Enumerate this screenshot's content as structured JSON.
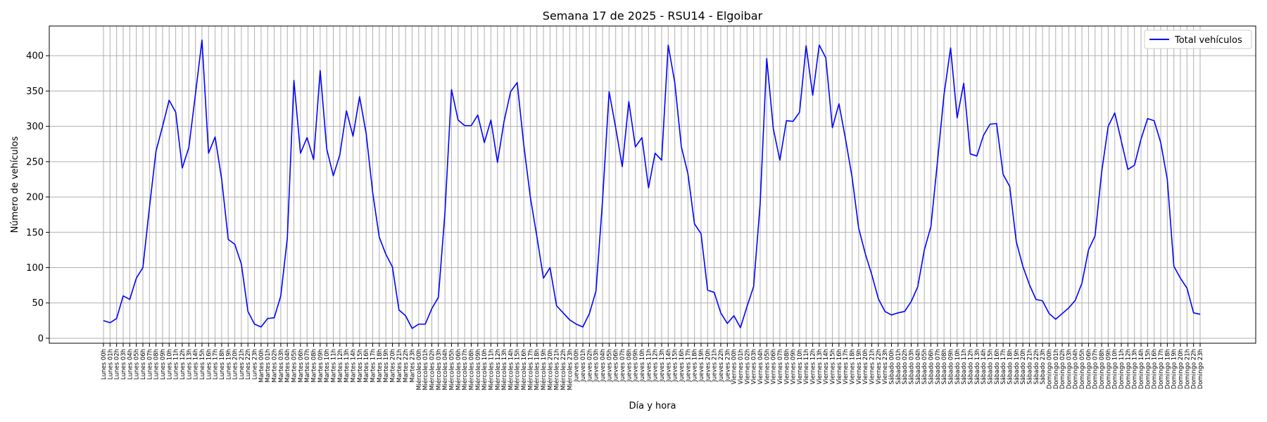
{
  "chart_data": {
    "type": "line",
    "title": "Semana 17 de 2025 - RSU14 - Elgoibar",
    "xlabel": "Día y hora",
    "ylabel": "Número de vehículos",
    "ylim": [
      -7,
      442
    ],
    "yticks": [
      0,
      50,
      100,
      150,
      200,
      250,
      300,
      350,
      400
    ],
    "grid": true,
    "legend": "top-right",
    "series": [
      {
        "name": "Total vehículos",
        "color": "#0000ff",
        "values": [
          25,
          22,
          28,
          60,
          55,
          85,
          100,
          185,
          265,
          300,
          337,
          320,
          241,
          270,
          345,
          422,
          262,
          285,
          225,
          140,
          133,
          105,
          38,
          20,
          16,
          28,
          29,
          60,
          142,
          365,
          262,
          284,
          253,
          379,
          268,
          230,
          260,
          322,
          286,
          342,
          290,
          206,
          143,
          119,
          101,
          40,
          32,
          14,
          20,
          20,
          42,
          58,
          178,
          352,
          309,
          301,
          301,
          316,
          277,
          309,
          249,
          307,
          349,
          362,
          274,
          200,
          144,
          85,
          100,
          46,
          36,
          26,
          20,
          16,
          35,
          67,
          195,
          349,
          298,
          243,
          335,
          271,
          284,
          213,
          262,
          252,
          415,
          362,
          271,
          233,
          162,
          148,
          68,
          65,
          36,
          21,
          32,
          15,
          45,
          73,
          190,
          396,
          297,
          252,
          308,
          307,
          320,
          414,
          344,
          415,
          397,
          298,
          332,
          282,
          228,
          156,
          120,
          90,
          56,
          38,
          33,
          36,
          38,
          52,
          73,
          125,
          158,
          250,
          345,
          411,
          312,
          361,
          261,
          258,
          287,
          303,
          304,
          232,
          215,
          137,
          102,
          76,
          55,
          53,
          35,
          27,
          35,
          43,
          54,
          78,
          125,
          145,
          235,
          300,
          319,
          279,
          239,
          245,
          282,
          311,
          308,
          277,
          225,
          102,
          85,
          71,
          36,
          34
        ]
      }
    ],
    "days": [
      "Lunes",
      "Martes",
      "Miércoles",
      "Jueves",
      "Viernes",
      "Sábado",
      "Domingo"
    ],
    "hours": [
      "00h",
      "01h",
      "02h",
      "03h",
      "04h",
      "05h",
      "06h",
      "07h",
      "08h",
      "09h",
      "10h",
      "11h",
      "12h",
      "13h",
      "14h",
      "15h",
      "16h",
      "17h",
      "18h",
      "19h",
      "20h",
      "21h",
      "22h",
      "23h"
    ]
  }
}
